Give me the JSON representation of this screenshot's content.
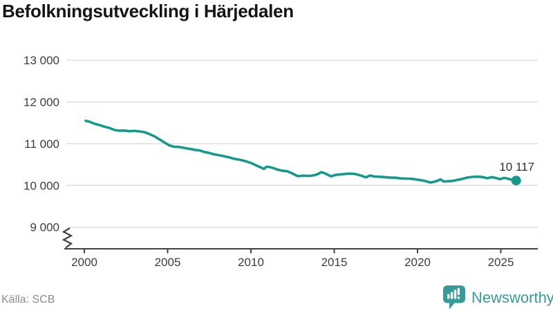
{
  "chart": {
    "title": "Befolkningsutveckling i Härjedalen"
  },
  "footer": {
    "source": "Källa: SCB",
    "brand": "Newsworthy"
  },
  "colors": {
    "line": "#149a8c",
    "dot": "#149a8c",
    "grid": "#dfdfdf",
    "axis": "#404040",
    "tick_label": "#3c3c3c",
    "annotation": "#2e2e2e",
    "source_text": "#8b8b8b",
    "brand": "#359c99",
    "background": "#ffffff"
  },
  "chart_data": {
    "type": "line",
    "title": "Befolkningsutveckling i Härjedalen",
    "source": "Källa: SCB",
    "legend": "none",
    "grid": "horizontal",
    "y_axis_break": true,
    "x_range": [
      1998.9,
      2027.2
    ],
    "y_range_shown": [
      9000,
      13000
    ],
    "x_ticks": [
      2000,
      2005,
      2010,
      2015,
      2020,
      2025
    ],
    "y_ticks": [
      {
        "value": 13000,
        "label": "13 000"
      },
      {
        "value": 12000,
        "label": "12 000"
      },
      {
        "value": 11000,
        "label": "11 000"
      },
      {
        "value": 10000,
        "label": "10 000"
      },
      {
        "value": 9000,
        "label": "9 000"
      }
    ],
    "end_annotation": {
      "label": "10 117",
      "value": 10117
    },
    "series": [
      {
        "name": "Befolkning",
        "points": [
          [
            2000.08,
            11548
          ],
          [
            2000.3,
            11528
          ],
          [
            2000.6,
            11478
          ],
          [
            2000.9,
            11448
          ],
          [
            2001.2,
            11408
          ],
          [
            2001.5,
            11378
          ],
          [
            2001.8,
            11330
          ],
          [
            2002.1,
            11312
          ],
          [
            2002.4,
            11315
          ],
          [
            2002.7,
            11300
          ],
          [
            2003.0,
            11308
          ],
          [
            2003.3,
            11295
          ],
          [
            2003.6,
            11278
          ],
          [
            2003.9,
            11232
          ],
          [
            2004.2,
            11178
          ],
          [
            2004.5,
            11108
          ],
          [
            2004.8,
            11032
          ],
          [
            2005.1,
            10958
          ],
          [
            2005.4,
            10925
          ],
          [
            2005.7,
            10920
          ],
          [
            2006.0,
            10898
          ],
          [
            2006.3,
            10878
          ],
          [
            2006.6,
            10855
          ],
          [
            2006.9,
            10840
          ],
          [
            2007.2,
            10803
          ],
          [
            2007.5,
            10778
          ],
          [
            2007.8,
            10743
          ],
          [
            2008.1,
            10723
          ],
          [
            2008.4,
            10698
          ],
          [
            2008.7,
            10672
          ],
          [
            2009.0,
            10635
          ],
          [
            2009.35,
            10615
          ],
          [
            2009.7,
            10578
          ],
          [
            2010.0,
            10538
          ],
          [
            2010.3,
            10483
          ],
          [
            2010.6,
            10428
          ],
          [
            2010.78,
            10398
          ],
          [
            2010.95,
            10448
          ],
          [
            2011.2,
            10433
          ],
          [
            2011.5,
            10393
          ],
          [
            2011.8,
            10358
          ],
          [
            2012.2,
            10338
          ],
          [
            2012.5,
            10283
          ],
          [
            2012.82,
            10220
          ],
          [
            2013.1,
            10233
          ],
          [
            2013.5,
            10228
          ],
          [
            2013.8,
            10243
          ],
          [
            2014.05,
            10278
          ],
          [
            2014.22,
            10320
          ],
          [
            2014.45,
            10288
          ],
          [
            2014.8,
            10218
          ],
          [
            2015.1,
            10253
          ],
          [
            2015.5,
            10268
          ],
          [
            2015.9,
            10283
          ],
          [
            2016.2,
            10278
          ],
          [
            2016.55,
            10243
          ],
          [
            2016.9,
            10193
          ],
          [
            2017.15,
            10238
          ],
          [
            2017.4,
            10213
          ],
          [
            2017.7,
            10208
          ],
          [
            2018.0,
            10198
          ],
          [
            2018.35,
            10188
          ],
          [
            2018.7,
            10183
          ],
          [
            2019.0,
            10168
          ],
          [
            2019.4,
            10163
          ],
          [
            2019.7,
            10158
          ],
          [
            2020.0,
            10138
          ],
          [
            2020.4,
            10112
          ],
          [
            2020.78,
            10070
          ],
          [
            2021.0,
            10088
          ],
          [
            2021.2,
            10112
          ],
          [
            2021.38,
            10142
          ],
          [
            2021.58,
            10093
          ],
          [
            2021.8,
            10100
          ],
          [
            2022.1,
            10108
          ],
          [
            2022.4,
            10133
          ],
          [
            2022.7,
            10158
          ],
          [
            2023.0,
            10188
          ],
          [
            2023.3,
            10204
          ],
          [
            2023.6,
            10210
          ],
          [
            2023.9,
            10200
          ],
          [
            2024.2,
            10172
          ],
          [
            2024.45,
            10198
          ],
          [
            2024.7,
            10178
          ],
          [
            2024.95,
            10150
          ],
          [
            2025.2,
            10180
          ],
          [
            2025.45,
            10158
          ],
          [
            2025.7,
            10133
          ],
          [
            2025.92,
            10117
          ]
        ]
      }
    ]
  }
}
